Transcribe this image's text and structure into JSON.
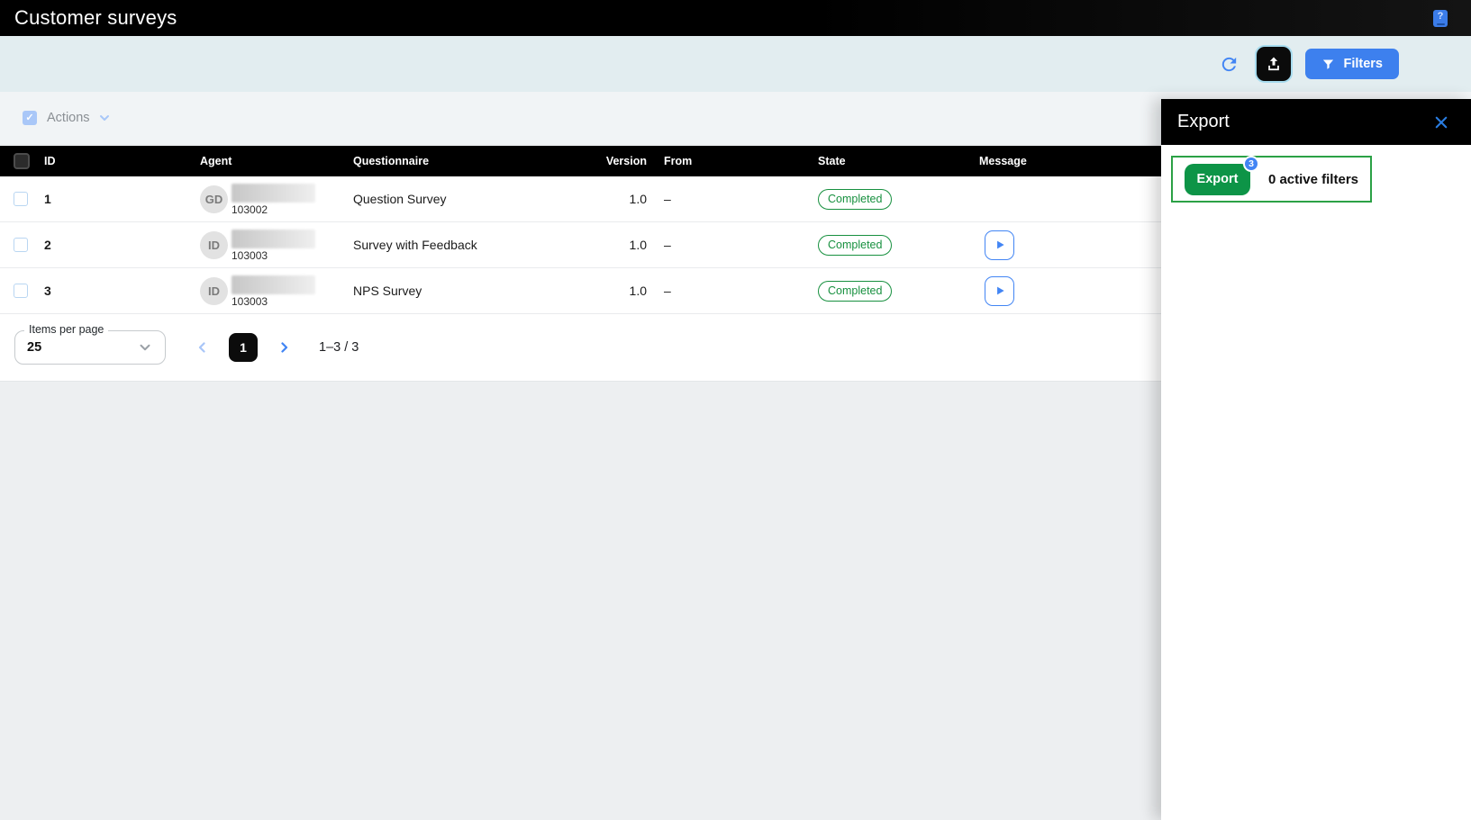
{
  "header": {
    "title": "Customer surveys"
  },
  "toolbar": {
    "filters_label": "Filters"
  },
  "actions_bar": {
    "label": "Actions"
  },
  "table": {
    "columns": [
      "ID",
      "Agent",
      "Questionnaire",
      "Version",
      "From",
      "State",
      "Message"
    ],
    "rows": [
      {
        "id": "1",
        "avatar_initials": "GD",
        "agent_number": "103002",
        "questionnaire": "Question Survey",
        "version": "1.0",
        "from": "–",
        "state": "Completed",
        "has_message_play": false
      },
      {
        "id": "2",
        "avatar_initials": "ID",
        "agent_number": "103003",
        "questionnaire": "Survey with Feedback",
        "version": "1.0",
        "from": "–",
        "state": "Completed",
        "has_message_play": true
      },
      {
        "id": "3",
        "avatar_initials": "ID",
        "agent_number": "103003",
        "questionnaire": "NPS Survey",
        "version": "1.0",
        "from": "–",
        "state": "Completed",
        "has_message_play": true
      }
    ]
  },
  "pagination": {
    "items_per_page_label": "Items per page",
    "items_per_page_value": "25",
    "current_page": "1",
    "range_label": "1–3 / 3"
  },
  "export_drawer": {
    "title": "Export",
    "export_button_label": "Export",
    "badge_count": "3",
    "active_filters_label": "0 active filters"
  },
  "colors": {
    "accent_blue": "#4285f4",
    "filters_blue": "#3d80ee",
    "export_green": "#0d9447",
    "export_box_border_green": "#2ba145",
    "status_green": "#17903f",
    "toolbar_bg": "#e2edf0",
    "page_bg": "#edeff1"
  }
}
